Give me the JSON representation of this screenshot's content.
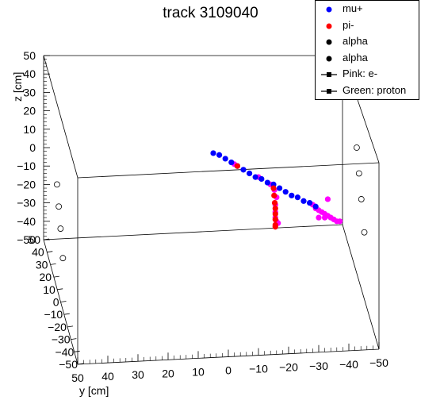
{
  "title": "track 3109040",
  "chart_data": {
    "type": "scatter",
    "title": "track 3109040",
    "xlabel": "",
    "ylabel": "y [cm]",
    "zlabel": "z [cm]",
    "xlim": [
      -50,
      50
    ],
    "ylim": [
      -50,
      50
    ],
    "zlim": [
      -50,
      50
    ],
    "xticks": [
      50,
      40,
      30,
      20,
      10,
      0,
      -10,
      -20,
      -30,
      -40,
      -50
    ],
    "yticks": [
      50,
      40,
      30,
      20,
      10,
      0,
      -10,
      -20,
      -30,
      -40,
      -50
    ],
    "zticks": [
      50,
      40,
      30,
      20,
      10,
      0,
      -10,
      -20,
      -30,
      -40,
      -50
    ],
    "x_tick_labels": [
      "50",
      "40",
      "30",
      "20",
      "10",
      "0",
      "−10",
      "−20",
      "−30",
      "−40",
      "−50"
    ],
    "y_tick_labels": [
      "50",
      "40",
      "30",
      "20",
      "10",
      "0",
      "−10",
      "−20",
      "−30",
      "−40",
      "−50"
    ],
    "z_tick_labels": [
      "50",
      "40",
      "30",
      "20",
      "10",
      "0",
      "−10",
      "−20",
      "−30",
      "−40",
      "−50"
    ],
    "legend": [
      {
        "label": "mu+",
        "marker": "dot",
        "color": "#0000ff"
      },
      {
        "label": "pi-",
        "marker": "dot",
        "color": "#ff0000"
      },
      {
        "label": "alpha",
        "marker": "dot",
        "color": "#000000"
      },
      {
        "label": "alpha",
        "marker": "dot",
        "color": "#000000"
      },
      {
        "label": "Pink: e-",
        "marker": "line-square",
        "color": "#000000"
      },
      {
        "label": "Green: proton",
        "marker": "line-square",
        "color": "#000000"
      }
    ],
    "legend_position": "top-right",
    "series": [
      {
        "name": "mu+",
        "color": "#0000ff",
        "points": [
          {
            "x": 5,
            "y": 0,
            "z": -3
          },
          {
            "x": 3,
            "y": 0,
            "z": -4
          },
          {
            "x": 1,
            "y": 0,
            "z": -6
          },
          {
            "x": -1,
            "y": 0,
            "z": -8
          },
          {
            "x": -3,
            "y": 0,
            "z": -10
          },
          {
            "x": -5,
            "y": 0,
            "z": -12
          },
          {
            "x": -7,
            "y": 0,
            "z": -14
          },
          {
            "x": -9,
            "y": 0,
            "z": -16
          },
          {
            "x": -11,
            "y": 0,
            "z": -17
          },
          {
            "x": -13,
            "y": 0,
            "z": -19
          },
          {
            "x": -15,
            "y": 0,
            "z": -20
          },
          {
            "x": -17,
            "y": 0,
            "z": -22
          },
          {
            "x": -19,
            "y": 0,
            "z": -24
          },
          {
            "x": -21,
            "y": 0,
            "z": -26
          },
          {
            "x": -23,
            "y": 0,
            "z": -27
          },
          {
            "x": -25,
            "y": 0,
            "z": -29
          },
          {
            "x": -27,
            "y": 0,
            "z": -30
          },
          {
            "x": -29,
            "y": 0,
            "z": -32
          }
        ]
      },
      {
        "name": "pi-",
        "color": "#ff0000",
        "points": [
          {
            "x": -15,
            "y": 0,
            "z": -22
          },
          {
            "x": -15.2,
            "y": 0,
            "z": -26
          },
          {
            "x": -15.4,
            "y": 0,
            "z": -30
          },
          {
            "x": -15.6,
            "y": 0,
            "z": -33
          },
          {
            "x": -15.6,
            "y": 0,
            "z": -36
          },
          {
            "x": -15.6,
            "y": 0,
            "z": -39
          },
          {
            "x": -15.6,
            "y": 0,
            "z": -42
          },
          {
            "x": -15.6,
            "y": 0,
            "z": -43
          },
          {
            "x": -3,
            "y": 0,
            "z": -10
          }
        ]
      },
      {
        "name": "e-",
        "color": "#ff00ff",
        "points": [
          {
            "x": -2,
            "y": 0,
            "z": -9
          },
          {
            "x": -10,
            "y": 0,
            "z": -16
          },
          {
            "x": -14,
            "y": 0,
            "z": -20
          },
          {
            "x": -15.3,
            "y": 0,
            "z": -23
          },
          {
            "x": -16,
            "y": 0,
            "z": -27
          },
          {
            "x": -15.6,
            "y": 0,
            "z": -31
          },
          {
            "x": -15.6,
            "y": 0,
            "z": -35
          },
          {
            "x": -15.6,
            "y": 0,
            "z": -38
          },
          {
            "x": -16,
            "y": 0,
            "z": -40
          },
          {
            "x": -16.5,
            "y": 0,
            "z": -41
          },
          {
            "x": -28,
            "y": 0,
            "z": -31
          },
          {
            "x": -29,
            "y": 0,
            "z": -33
          },
          {
            "x": -30,
            "y": 0,
            "z": -34
          },
          {
            "x": -31,
            "y": 0,
            "z": -35
          },
          {
            "x": -32,
            "y": 0,
            "z": -36
          },
          {
            "x": -33,
            "y": 0,
            "z": -37
          },
          {
            "x": -34,
            "y": 0,
            "z": -38
          },
          {
            "x": -35,
            "y": 0,
            "z": -39
          },
          {
            "x": -36,
            "y": 0,
            "z": -40
          },
          {
            "x": -37,
            "y": 0,
            "z": -40
          },
          {
            "x": -30,
            "y": 0,
            "z": -38
          },
          {
            "x": -32,
            "y": 0,
            "z": -38
          },
          {
            "x": -33,
            "y": 0,
            "z": -28
          }
        ]
      }
    ],
    "frame_markers": [
      {
        "x": 50,
        "y": 0,
        "z": -20
      },
      {
        "x": 50,
        "y": 0,
        "z": -32
      },
      {
        "x": 50,
        "y": 0,
        "z": -44
      },
      {
        "x": 50,
        "y": 0,
        "z": -60
      },
      {
        "x": -50,
        "y": 0,
        "z": 0
      },
      {
        "x": -50,
        "y": 0,
        "z": -14
      },
      {
        "x": -50,
        "y": 0,
        "z": -28
      },
      {
        "x": -50,
        "y": 0,
        "z": -46
      }
    ],
    "grid": false
  }
}
